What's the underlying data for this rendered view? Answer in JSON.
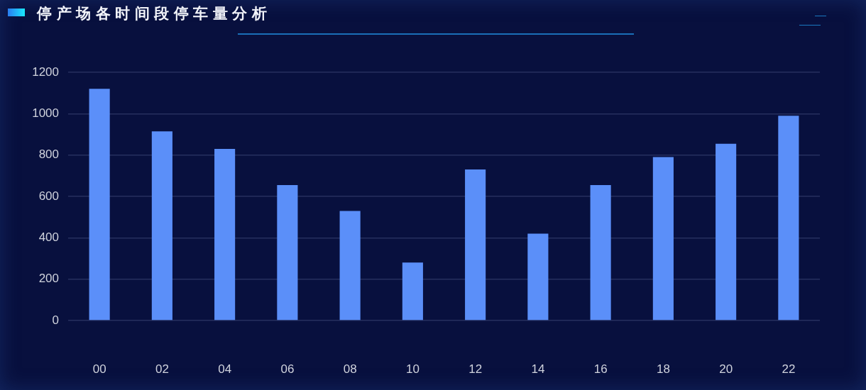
{
  "chart_data": {
    "type": "bar",
    "title": "停产场各时间段停车量分析",
    "categories": [
      "00",
      "02",
      "04",
      "06",
      "08",
      "10",
      "12",
      "14",
      "16",
      "18",
      "20",
      "22"
    ],
    "values": [
      1120,
      915,
      830,
      655,
      530,
      280,
      730,
      420,
      655,
      790,
      855,
      990
    ],
    "color": "#5b8ff9",
    "ylim": [
      0,
      1200
    ],
    "yticks": [
      0,
      200,
      400,
      600,
      800,
      1000,
      1200
    ],
    "grid": "y"
  }
}
